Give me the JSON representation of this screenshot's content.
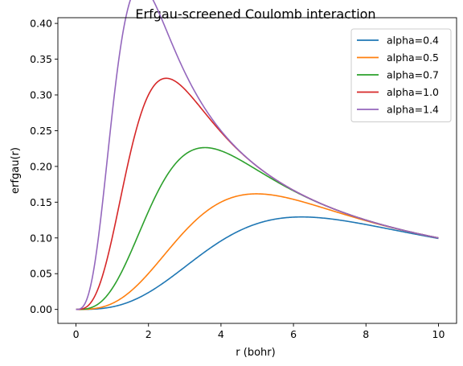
{
  "chart_data": {
    "type": "line",
    "title": "Erfgau-screened Coulomb interaction",
    "xlabel": "r (bohr)",
    "ylabel": "erfgau(r)",
    "xlim": [
      -0.5,
      10.5
    ],
    "ylim": [
      -0.0195,
      0.408
    ],
    "xticks": [
      0,
      2,
      4,
      6,
      8,
      10
    ],
    "xtick_labels": [
      "0",
      "2",
      "4",
      "6",
      "8",
      "10"
    ],
    "yticks": [
      0.0,
      0.05,
      0.1,
      0.15,
      0.2,
      0.25,
      0.3,
      0.35,
      0.4
    ],
    "ytick_labels": [
      "0.00",
      "0.05",
      "0.10",
      "0.15",
      "0.20",
      "0.25",
      "0.30",
      "0.35",
      "0.40"
    ],
    "grid": false,
    "legend_position": "top-right",
    "x_range": [
      0,
      10
    ],
    "series": [
      {
        "name": "alpha=0.4",
        "color": "#1f77b4",
        "alpha": 0.4
      },
      {
        "name": "alpha=0.5",
        "color": "#ff7f0e",
        "alpha": 0.5
      },
      {
        "name": "alpha=0.7",
        "color": "#2ca02c",
        "alpha": 0.7
      },
      {
        "name": "alpha=1.0",
        "color": "#d62728",
        "alpha": 1.0
      },
      {
        "name": "alpha=1.4",
        "color": "#9467bd",
        "alpha": 1.4
      }
    ]
  }
}
